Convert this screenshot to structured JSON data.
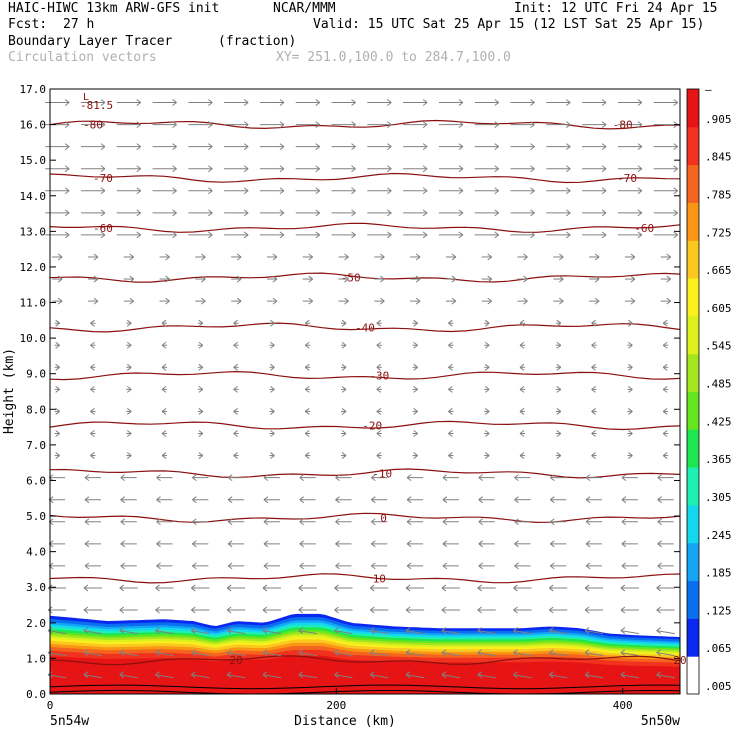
{
  "header": {
    "model": "HAIC-HIWC 13km ARW-GFS init",
    "org": "NCAR/MMM",
    "init": "Init: 12 UTC Fri 24 Apr 15",
    "fcst_label": "Fcst:",
    "fcst_value": "27 h",
    "valid": "Valid: 15 UTC Sat 25 Apr 15 (12 LST Sat 25 Apr 15)",
    "field": "Boundary Layer Tracer",
    "units": "(fraction)",
    "vectors": "Circulation vectors",
    "xy": "XY= 251.0,100.0 to 284.7,100.0"
  },
  "chart_data": {
    "type": "heatmap",
    "xlabel": "Distance (km)",
    "ylabel": "Height (km)",
    "xlim": [
      0,
      440
    ],
    "ylim": [
      0,
      17
    ],
    "x_ticks": [
      "0",
      "200",
      "400"
    ],
    "x_tick_values": [
      0,
      200,
      400
    ],
    "x_end_labels": [
      "5n54w",
      "5n50w"
    ],
    "y_ticks": [
      "0.0",
      "1.0",
      "2.0",
      "3.0",
      "4.0",
      "5.0",
      "6.0",
      "7.0",
      "8.0",
      "9.0",
      "10.0",
      "11.0",
      "12.0",
      "13.0",
      "14.0",
      "15.0",
      "16.0",
      "17.0"
    ],
    "colorbar_labels": [
      ".005",
      ".065",
      ".125",
      ".185",
      ".245",
      ".305",
      ".365",
      ".425",
      ".485",
      ".545",
      ".605",
      ".665",
      ".725",
      ".785",
      ".845",
      ".905",
      "–"
    ],
    "colorbar_colors": [
      "#ffffff",
      "#0a28f0",
      "#0a6ef0",
      "#14a5f5",
      "#14d7f0",
      "#1ef0b4",
      "#1ee650",
      "#64e61e",
      "#a5e61e",
      "#dcf01e",
      "#faf01e",
      "#fac81e",
      "#fa9614",
      "#f5641e",
      "#f0321e",
      "#e61414"
    ],
    "low_label": "L",
    "low_value": "-81.5",
    "contour_color": "#8b1010",
    "vector_color": "#808080",
    "contours": [
      {
        "label": "-80",
        "height": 16.0,
        "label_x": [
          30,
          400
        ]
      },
      {
        "label": "-70",
        "height": 14.5,
        "label_x": [
          37,
          403
        ]
      },
      {
        "label": "-60",
        "height": 13.1,
        "label_x": [
          37,
          415
        ]
      },
      {
        "label": "-50",
        "height": 11.7,
        "label_x": [
          210
        ]
      },
      {
        "label": "-40",
        "height": 10.3,
        "label_x": [
          220
        ]
      },
      {
        "label": "-30",
        "height": 8.95,
        "label_x": [
          230
        ]
      },
      {
        "label": "-20",
        "height": 7.55,
        "label_x": [
          225
        ]
      },
      {
        "label": "-10",
        "height": 6.2,
        "label_x": [
          232
        ]
      },
      {
        "label": "0",
        "height": 4.95,
        "label_x": [
          233
        ]
      },
      {
        "label": "10",
        "height": 3.25,
        "label_x": [
          230
        ]
      },
      {
        "label": "20",
        "height": 0.95,
        "label_x": [
          130,
          440
        ]
      }
    ],
    "tracer_top_km": [
      [
        0,
        2.2
      ],
      [
        40,
        2.05
      ],
      [
        80,
        2.1
      ],
      [
        100,
        2.05
      ],
      [
        115,
        1.9
      ],
      [
        130,
        2.05
      ],
      [
        150,
        2.0
      ],
      [
        170,
        2.25
      ],
      [
        190,
        2.25
      ],
      [
        210,
        2.0
      ],
      [
        240,
        1.9
      ],
      [
        270,
        1.85
      ],
      [
        300,
        1.85
      ],
      [
        330,
        1.85
      ],
      [
        350,
        1.9
      ],
      [
        370,
        1.85
      ],
      [
        390,
        1.7
      ],
      [
        410,
        1.65
      ],
      [
        440,
        1.6
      ]
    ]
  }
}
